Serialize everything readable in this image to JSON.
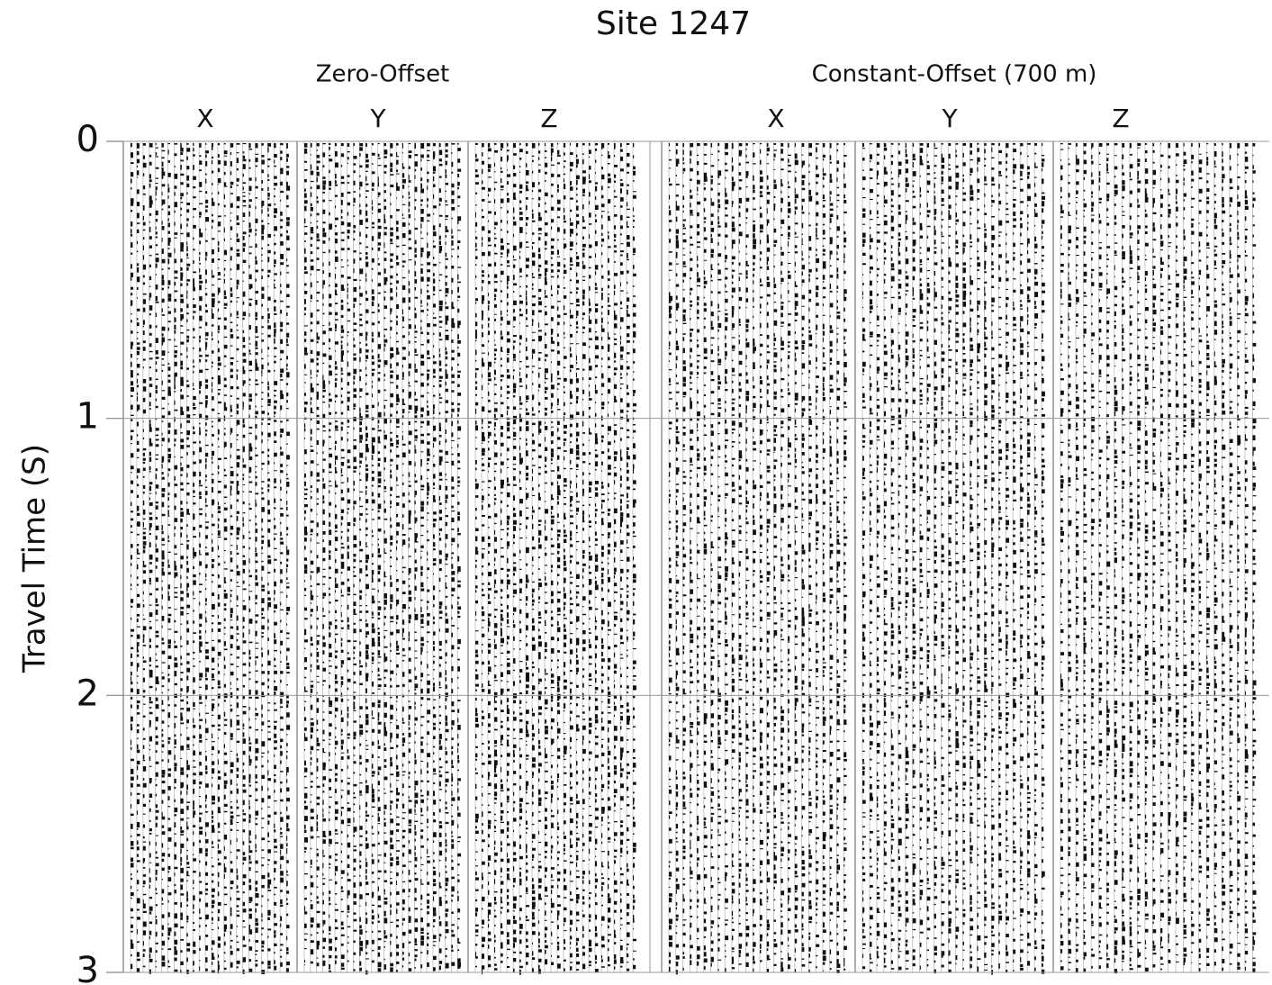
{
  "chart_data": {
    "type": "seismic-section",
    "title": "Site 1247",
    "y_label": "Travel Time (S)",
    "ylim": [
      0,
      3
    ],
    "y_inverted": true,
    "yticks": [
      0,
      1,
      2,
      3
    ],
    "grid": true,
    "groups": [
      {
        "label": "Zero-Offset",
        "panels": [
          "X",
          "Y",
          "Z"
        ]
      },
      {
        "label": "Constant-Offset (700 m)",
        "panels": [
          "X",
          "Y",
          "Z"
        ]
      }
    ]
  }
}
